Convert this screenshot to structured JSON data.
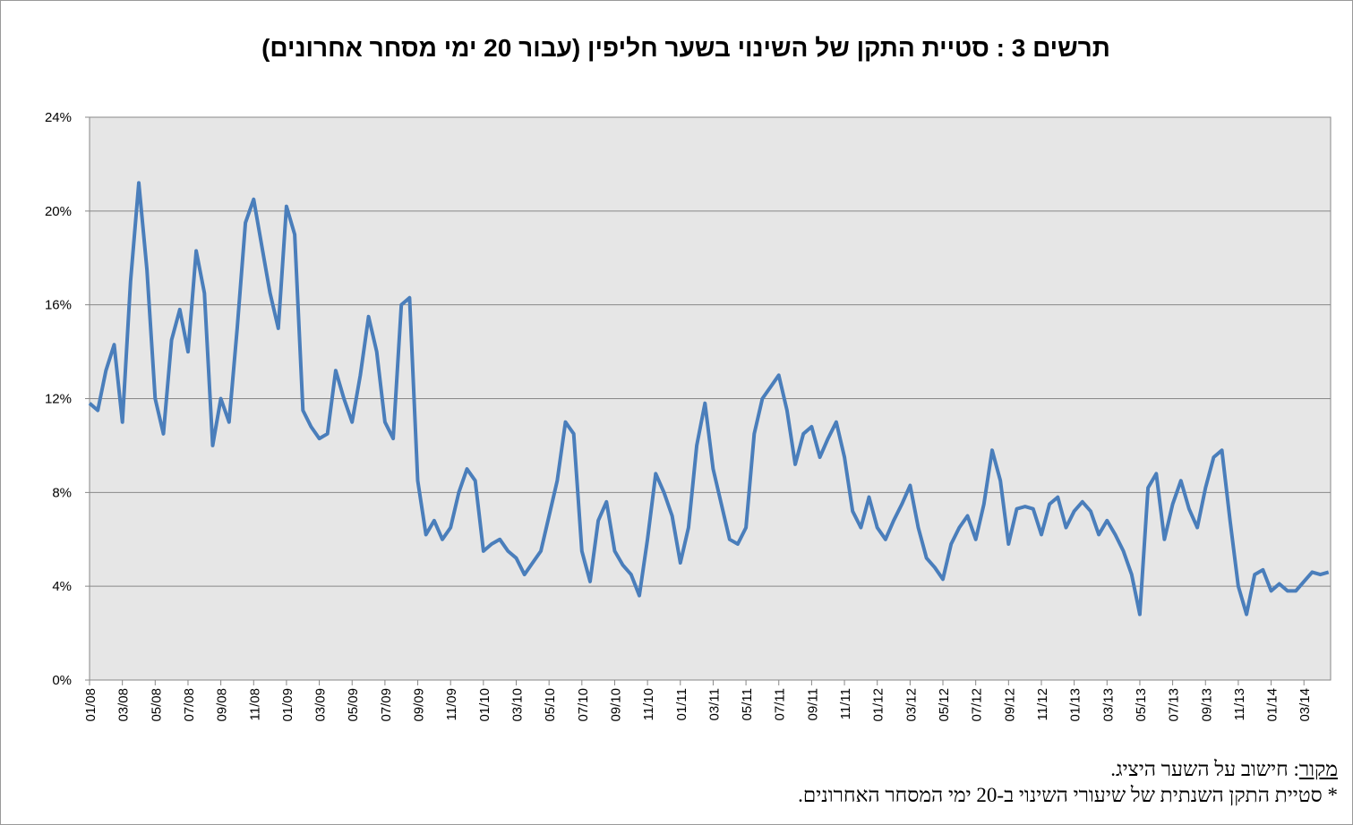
{
  "chart_data": {
    "type": "line",
    "title": "תרשים 3 : סטיית התקן של השינוי בשער חליפין (עבור 20 ימי מסחר אחרונים)",
    "categories": [
      "01/08",
      null,
      null,
      null,
      "03/08",
      null,
      null,
      null,
      "05/08",
      null,
      null,
      null,
      "07/08",
      null,
      null,
      null,
      "09/08",
      null,
      null,
      null,
      "11/08",
      null,
      null,
      null,
      "01/09",
      null,
      null,
      null,
      "03/09",
      null,
      null,
      null,
      "05/09",
      null,
      null,
      null,
      "07/09",
      null,
      null,
      null,
      "09/09",
      null,
      null,
      null,
      "11/09",
      null,
      null,
      null,
      "01/10",
      null,
      null,
      null,
      "03/10",
      null,
      null,
      null,
      "05/10",
      null,
      null,
      null,
      "07/10",
      null,
      null,
      null,
      "09/10",
      null,
      null,
      null,
      "11/10",
      null,
      null,
      null,
      "01/11",
      null,
      null,
      null,
      "03/11",
      null,
      null,
      null,
      "05/11",
      null,
      null,
      null,
      "07/11",
      null,
      null,
      null,
      "09/11",
      null,
      null,
      null,
      "11/11",
      null,
      null,
      null,
      "01/12",
      null,
      null,
      null,
      "03/12",
      null,
      null,
      null,
      "05/12",
      null,
      null,
      null,
      "07/12",
      null,
      null,
      null,
      "09/12",
      null,
      null,
      null,
      "11/12",
      null,
      null,
      null,
      "01/13",
      null,
      null,
      null,
      "03/13",
      null,
      null,
      null,
      "05/13",
      null,
      null,
      null,
      "07/13",
      null,
      null,
      null,
      "09/13",
      null,
      null,
      null,
      "11/13",
      null,
      null,
      null,
      "01/14",
      null,
      null,
      null,
      "03/14",
      null,
      null,
      null
    ],
    "series": [
      {
        "color": "#4a7ebb",
        "values": [
          11.8,
          11.5,
          13.2,
          14.3,
          11,
          17,
          21.2,
          17.5,
          12,
          10.5,
          14.5,
          15.8,
          14,
          18.3,
          16.5,
          10,
          12,
          11,
          15,
          19.5,
          20.5,
          18.5,
          16.5,
          15,
          20.2,
          19,
          11.5,
          10.8,
          10.3,
          10.5,
          13.2,
          12,
          11,
          13,
          15.5,
          14,
          11,
          10.3,
          16,
          16.3,
          8.5,
          6.2,
          6.8,
          6,
          6.5,
          8,
          9,
          8.5,
          5.5,
          5.8,
          6,
          5.5,
          5.2,
          4.5,
          5,
          5.5,
          7,
          8.5,
          11,
          10.5,
          5.5,
          4.2,
          6.8,
          7.6,
          5.5,
          4.9,
          4.5,
          3.6,
          6,
          8.8,
          8,
          7,
          5,
          6.5,
          10,
          11.8,
          9,
          7.5,
          6,
          5.8,
          6.5,
          10.5,
          12,
          12.5,
          13,
          11.5,
          9.2,
          10.5,
          10.8,
          9.5,
          10.3,
          11,
          9.5,
          7.2,
          6.5,
          7.8,
          6.5,
          6,
          6.8,
          7.5,
          8.3,
          6.5,
          5.2,
          4.8,
          4.3,
          5.8,
          6.5,
          7,
          6,
          7.5,
          9.8,
          8.5,
          5.8,
          7.3,
          7.4,
          7.3,
          6.2,
          7.5,
          7.8,
          6.5,
          7.2,
          7.6,
          7.2,
          6.2,
          6.8,
          6.2,
          5.5,
          4.5,
          2.8,
          8.2,
          8.8,
          6,
          7.5,
          8.5,
          7.3,
          6.5,
          8.2,
          9.5,
          9.8,
          6.8,
          4,
          2.8,
          4.5,
          4.7,
          3.8,
          4.1,
          3.8,
          3.8,
          4.2,
          4.6,
          4.5,
          4.6
        ]
      }
    ],
    "ylim": [
      0,
      24
    ],
    "yticks": [
      {
        "value": 0,
        "label": "0%"
      },
      {
        "value": 4,
        "label": "4%"
      },
      {
        "value": 8,
        "label": "8%"
      },
      {
        "value": 12,
        "label": "12%"
      },
      {
        "value": 16,
        "label": "16%"
      },
      {
        "value": 20,
        "label": "20%"
      },
      {
        "value": 24,
        "label": "24%"
      }
    ],
    "grid": true,
    "footnotes": {
      "source_label": "מקור",
      "source_text": ": חישוב על השער היציג.",
      "note": "* סטיית התקן השנתית של שיעורי השינוי ב-20 ימי המסחר האחרונים."
    }
  }
}
